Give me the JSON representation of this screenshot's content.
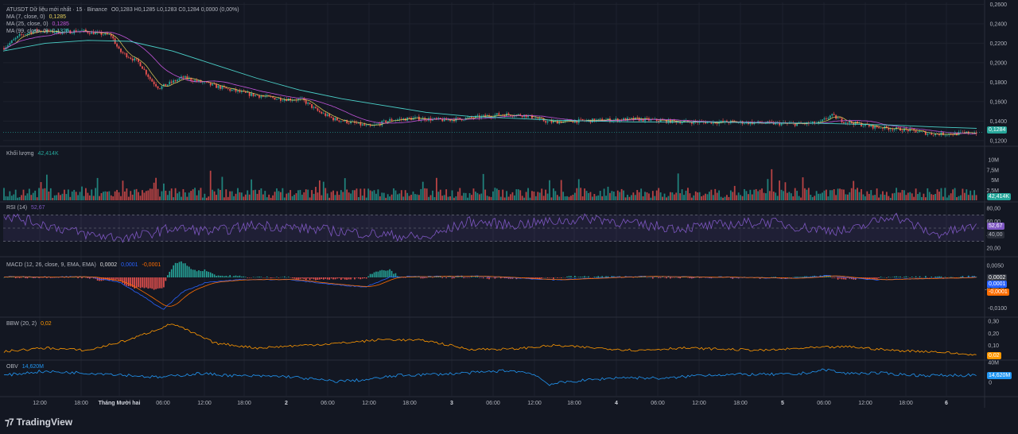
{
  "header": {
    "symbol": "ATUSDT Dữ liệu mới nhất · 15 · Binance",
    "ohlc": "O0,1283  H0,1285  L0,1283  C0,1284  0,0000 (0,00%)",
    "ma7": {
      "label": "MA (7, close, 0)",
      "value": "0,1285"
    },
    "ma25": {
      "label": "MA (25, close, 0)",
      "value": "0,1285"
    },
    "ma99": {
      "label": "MA (99, close, 0)",
      "value": "0,1326"
    }
  },
  "price_axis": {
    "ticks": [
      "0,2600",
      "0,2400",
      "0,2200",
      "0,2000",
      "0,1800",
      "0,1600",
      "0,1400",
      "0,1200"
    ],
    "current": "0,1284"
  },
  "volume": {
    "label": "Khối lượng",
    "value": "42,414K",
    "ticks": [
      "10M",
      "7,5M",
      "5M",
      "2,5M"
    ],
    "current": "42,414K"
  },
  "rsi": {
    "label": "RSI (14)",
    "value": "52,67",
    "ticks": [
      "80,00",
      "60,00",
      "40,00",
      "20,00"
    ],
    "current": "52,67",
    "band": "40,00"
  },
  "macd": {
    "label": "MACD (12, 26, close, 9, EMA, EMA)",
    "v1": "0,0002",
    "v2": "0,0001",
    "v3": "-0,0001",
    "ticks": [
      "0,0050",
      "-0,0050",
      "-0,0100"
    ],
    "tags": [
      "0,0002",
      "0,0001",
      "-0,0001"
    ]
  },
  "bbw": {
    "label": "BBW (20, 2)",
    "value": "0,02",
    "ticks": [
      "0,30",
      "0,20",
      "0,10"
    ],
    "current": "0,02"
  },
  "obv": {
    "label": "OBV",
    "value": "14,620M",
    "ticks": [
      "40M",
      "0"
    ],
    "current": "14,620M"
  },
  "time_axis": [
    "12:00",
    "18:00",
    "Tháng Mười hai",
    "06:00",
    "12:00",
    "18:00",
    "2",
    "06:00",
    "12:00",
    "18:00",
    "3",
    "06:00",
    "12:00",
    "18:00",
    "4",
    "06:00",
    "12:00",
    "18:00",
    "5",
    "06:00",
    "12:00",
    "18:00",
    "6"
  ],
  "brand": "TradingView",
  "colors": {
    "bg": "#131722",
    "up": "#26a69a",
    "down": "#ef5350",
    "ma7": "#e8d35b",
    "ma25": "#c054d8",
    "ma99": "#4ad0c8",
    "rsi": "#7e57c2",
    "macd": "#2962ff",
    "signal": "#ff6d00",
    "bbw": "#ff9800",
    "obv": "#2196f3"
  },
  "chart_data": [
    {
      "type": "line",
      "title": "",
      "series": [
        {
          "name": "MA (99, close, 0)",
          "values": [
            0.212,
            0.22,
            0.223,
            0.222,
            0.212,
            0.198,
            0.184,
            0.172,
            0.163,
            0.156,
            0.149,
            0.145,
            0.143,
            0.141,
            0.14,
            0.139,
            0.139,
            0.139,
            0.138,
            0.138,
            0.137,
            0.136,
            0.134,
            0.1326
          ]
        },
        {
          "name": "Price (approx)",
          "values": [
            0.215,
            0.23,
            0.228,
            0.23,
            0.2,
            0.175,
            0.178,
            0.17,
            0.165,
            0.158,
            0.133,
            0.14,
            0.142,
            0.145,
            0.14,
            0.143,
            0.141,
            0.14,
            0.138,
            0.14,
            0.136,
            0.13,
            0.127,
            0.1284
          ]
        }
      ],
      "ylim": [
        0.115,
        0.26
      ]
    },
    {
      "type": "line",
      "title": "",
      "series": [
        {
          "name": "RSI (14)",
          "values": [
            70,
            55,
            40,
            35,
            50,
            45,
            55,
            50,
            45,
            40,
            35,
            60,
            55,
            60,
            65,
            55,
            50,
            55,
            60,
            50,
            45,
            70,
            40,
            52.67
          ]
        }
      ],
      "ylim": [
        0,
        100
      ]
    },
    {
      "type": "line",
      "title": "",
      "series": [
        {
          "name": "BBW (20, 2)",
          "values": [
            0.05,
            0.08,
            0.06,
            0.15,
            0.28,
            0.12,
            0.08,
            0.1,
            0.12,
            0.15,
            0.14,
            0.07,
            0.07,
            0.1,
            0.08,
            0.06,
            0.08,
            0.07,
            0.06,
            0.08,
            0.09,
            0.06,
            0.05,
            0.02
          ]
        }
      ],
      "ylim": [
        0,
        0.3
      ]
    }
  ]
}
